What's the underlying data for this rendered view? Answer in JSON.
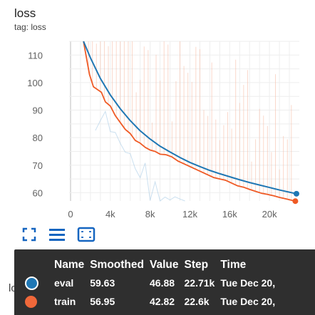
{
  "card": {
    "title": "loss",
    "tag": "tag: loss"
  },
  "colors": {
    "eval": "#1f77b4",
    "train": "#f0683a",
    "train_smoothed": "#ef5a25"
  },
  "icons": [
    "fit-domain-icon",
    "toggle-y-log-icon",
    "expand-icon"
  ],
  "behind_label": "loss",
  "chart_data": {
    "type": "line",
    "title": "loss",
    "xlabel": "",
    "ylabel": "",
    "x_ticks": [
      {
        "value": 0,
        "label": "0"
      },
      {
        "value": 4000,
        "label": "4k"
      },
      {
        "value": 8000,
        "label": "8k"
      },
      {
        "value": 12000,
        "label": "12k"
      },
      {
        "value": 16000,
        "label": "16k"
      },
      {
        "value": 20000,
        "label": "20k"
      }
    ],
    "y_ticks": [
      {
        "value": 60,
        "label": "60"
      },
      {
        "value": 70,
        "label": "70"
      },
      {
        "value": 80,
        "label": "80"
      },
      {
        "value": 90,
        "label": "90"
      },
      {
        "value": 100,
        "label": "100"
      },
      {
        "value": 110,
        "label": "110"
      }
    ],
    "xlim": [
      0,
      23000
    ],
    "ylim": [
      57,
      115
    ],
    "grid": true,
    "series": [
      {
        "name": "eval",
        "smoothed": true,
        "x": [
          1300,
          2000,
          3000,
          4000,
          5000,
          6000,
          7000,
          8000,
          9000,
          10000,
          11000,
          12000,
          13000,
          14000,
          15000,
          16000,
          17000,
          18000,
          19000,
          20000,
          21000,
          22710
        ],
        "values": [
          115,
          109,
          101.5,
          95.5,
          90.5,
          86.2,
          82.5,
          79.5,
          76.9,
          74.8,
          72.8,
          71.0,
          69.5,
          68.1,
          66.9,
          65.8,
          64.7,
          63.7,
          62.8,
          61.9,
          61.0,
          59.63
        ]
      },
      {
        "name": "train",
        "smoothed": true,
        "x": [
          1300,
          1600,
          1900,
          2300,
          2700,
          3100,
          3500,
          4000,
          4500,
          5000,
          5500,
          6000,
          6500,
          7000,
          7500,
          8000,
          8500,
          9000,
          9600,
          10200,
          10800,
          11400,
          12000,
          12600,
          13200,
          13800,
          14400,
          15000,
          15600,
          16200,
          16800,
          17400,
          18000,
          18600,
          19200,
          19800,
          20400,
          21000,
          21600,
          22600
        ],
        "values": [
          115,
          109,
          103,
          98.5,
          97.5,
          96.5,
          93,
          91.5,
          88,
          85.5,
          83,
          81.5,
          79,
          78,
          76.5,
          75.5,
          75,
          74,
          73.8,
          73,
          71.5,
          70.5,
          69.5,
          68.5,
          67.5,
          66.5,
          65.5,
          65,
          64.5,
          63.5,
          62.5,
          62,
          61.2,
          60.5,
          59.8,
          59.4,
          58.9,
          58.3,
          57.8,
          56.95
        ]
      }
    ],
    "legend_table": {
      "headers": {
        "name": "Name",
        "smoothed": "Smoothed",
        "value": "Value",
        "step": "Step",
        "time": "Time"
      },
      "rows": [
        {
          "name": "eval",
          "smoothed": "59.63",
          "value": "46.88",
          "step": "22.71k",
          "time": "Tue Dec 20,"
        },
        {
          "name": "train",
          "smoothed": "56.95",
          "value": "42.82",
          "step": "22.6k",
          "time": "Tue Dec 20,"
        }
      ]
    }
  }
}
